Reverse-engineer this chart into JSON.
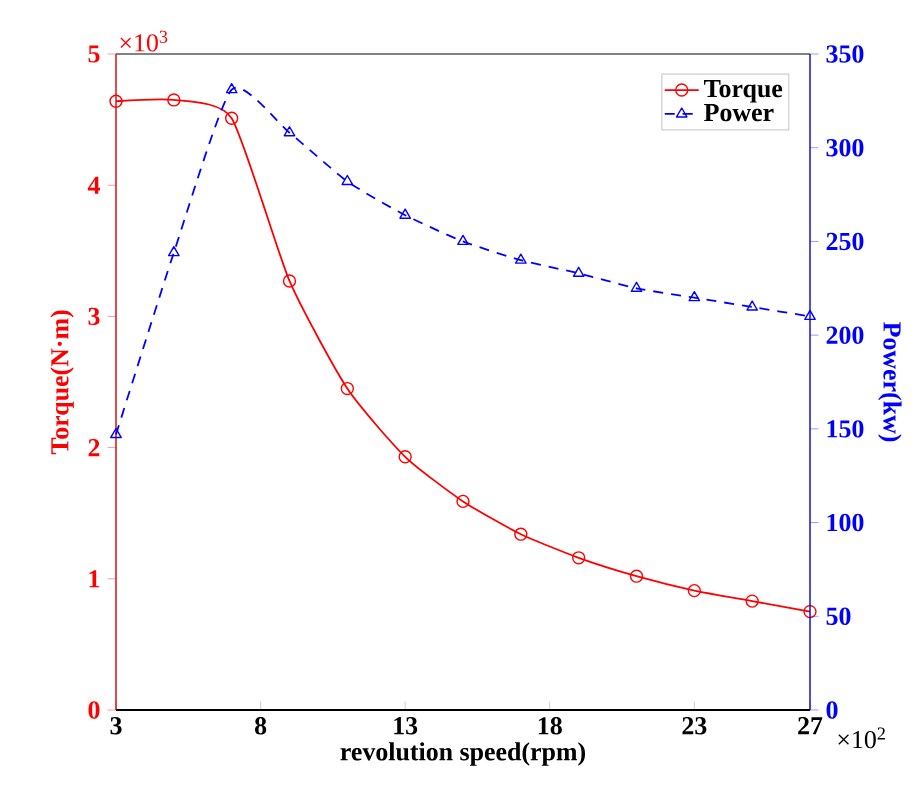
{
  "chart_data": {
    "type": "line",
    "xlabel": "revolution speed(rpm)",
    "ylabel": "Torque(N·m)",
    "y2label": "Power(kw)",
    "x": [
      3,
      5,
      7,
      9,
      11,
      13,
      15,
      17,
      19,
      21,
      23,
      25,
      27
    ],
    "series": [
      {
        "name": "Torque",
        "color": "#ff0000",
        "marker": "circle",
        "line_style": "solid",
        "values": [
          4.64,
          4.65,
          4.51,
          3.27,
          2.45,
          1.93,
          1.59,
          1.34,
          1.16,
          1.02,
          0.91,
          0.83,
          0.75
        ]
      },
      {
        "name": "Power",
        "color": "#0000ff",
        "marker": "triangle",
        "line_style": "dashed",
        "axis": "y2",
        "values": [
          147,
          244,
          331,
          308,
          282,
          264,
          250,
          240,
          233,
          225,
          220,
          215,
          210
        ]
      }
    ],
    "xlim": [
      3,
      27
    ],
    "xticks": [
      3,
      8,
      13,
      18,
      23,
      27
    ],
    "ylim": [
      0,
      5
    ],
    "yticks": [
      0,
      1,
      2,
      3,
      4,
      5
    ],
    "y2lim": [
      0,
      350
    ],
    "y2ticks": [
      0,
      50,
      100,
      150,
      200,
      250,
      300,
      350
    ],
    "annotations": [
      "×10$^{3}$",
      "×10$^{2}$"
    ],
    "legend": "top right",
    "grid": false
  }
}
